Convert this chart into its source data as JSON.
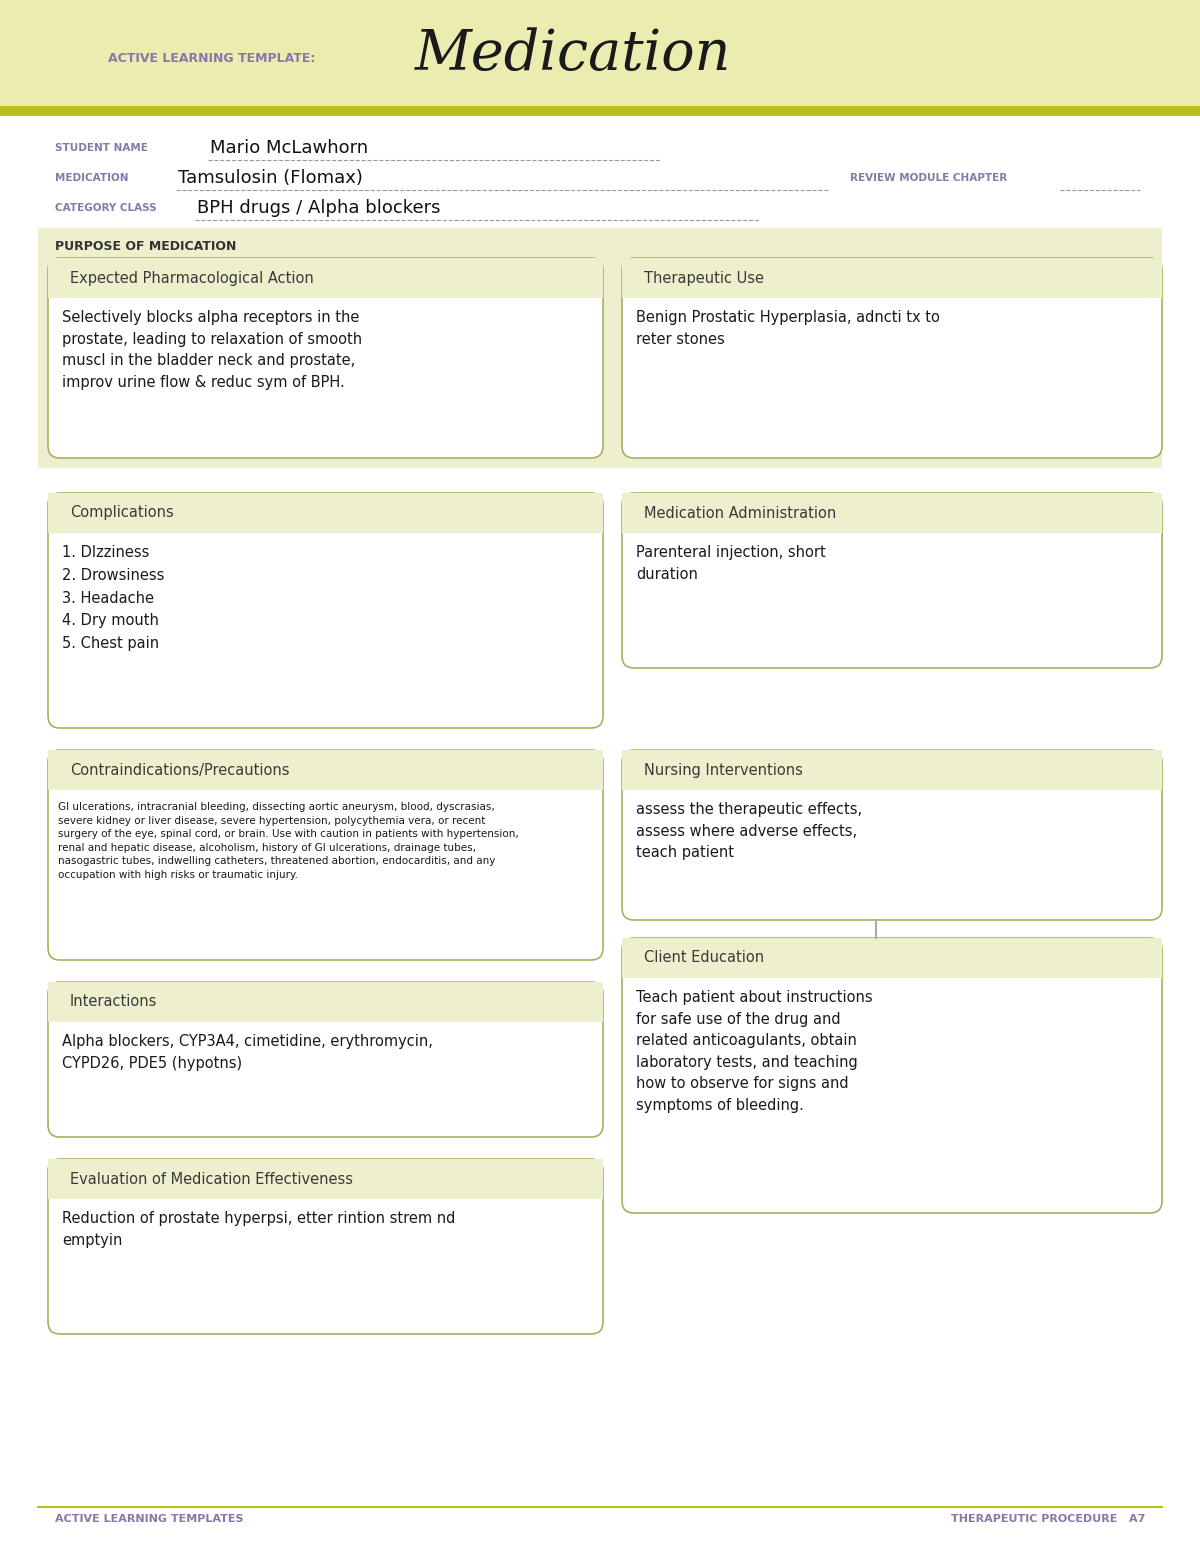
{
  "bg_color": "#ffffff",
  "header_bg": "#eaecb0",
  "header_accent": "#b8c020",
  "box_bg": "#eeefcc",
  "box_border": "#aab060",
  "title_label": "ACTIVE LEARNING TEMPLATE:",
  "title_main": "Medication",
  "student_label": "STUDENT NAME",
  "student_name": "Mario McLawhorn",
  "medication_label": "MEDICATION",
  "medication_name": "Tamsulosin (Flomax)",
  "review_label": "REVIEW MODULE CHAPTER",
  "category_label": "CATEGORY CLASS",
  "category_name": "BPH drugs / Alpha blockers",
  "purpose_label": "PURPOSE OF MEDICATION",
  "epa_title": "Expected Pharmacological Action",
  "epa_text": "Selectively blocks alpha receptors in the\nprostate, leading to relaxation of smooth\nmuscl in the bladder neck and prostate,\nimprov urine flow & reduc sym of BPH.",
  "tu_title": "Therapeutic Use",
  "tu_text": "Benign Prostatic Hyperplasia, adncti tx to\nreter stones",
  "comp_title": "Complications",
  "comp_text": "1. DIzziness\n2. Drowsiness\n3. Headache\n4. Dry mouth\n5. Chest pain",
  "med_admin_title": "Medication Administration",
  "med_admin_text": "Parenteral injection, short\nduration",
  "contra_title": "Contraindications/Precautions",
  "contra_text": "GI ulcerations, intracranial bleeding, dissecting aortic aneurysm, blood, dyscrasias,\nsevere kidney or liver disease, severe hypertension, polycythemia vera, or recent\nsurgery of the eye, spinal cord, or brain. Use with caution in patients with hypertension,\nrenal and hepatic disease, alcoholism, history of GI ulcerations, drainage tubes,\nnasogastric tubes, indwelling catheters, threatened abortion, endocarditis, and any\noccupation with high risks or traumatic injury.",
  "nursing_title": "Nursing Interventions",
  "nursing_text": "assess the therapeutic effects,\nassess where adverse effects,\nteach patient",
  "interact_title": "Interactions",
  "interact_text": "Alpha blockers, CYP3A4, cimetidine, erythromycin,\nCYPD26, PDE5 (hypotns)",
  "eval_title": "Evaluation of Medication Effectiveness",
  "eval_text": "Reduction of prostate hyperpsi, etter rintion strem nd\nemptyin",
  "client_title": "Client Education",
  "client_text": "Teach patient about instructions\nfor safe use of the drug and\nrelated anticoagulants, obtain\nlaboratory tests, and teaching\nhow to observe for signs and\nsymptoms of bleeding.",
  "footer_left": "ACTIVE LEARNING TEMPLATES",
  "footer_right": "THERAPEUTIC PROCEDURE   A7",
  "label_color": "#8878a8",
  "box_title_color": "#3a3a3a",
  "body_text_color": "#1a1a1a"
}
